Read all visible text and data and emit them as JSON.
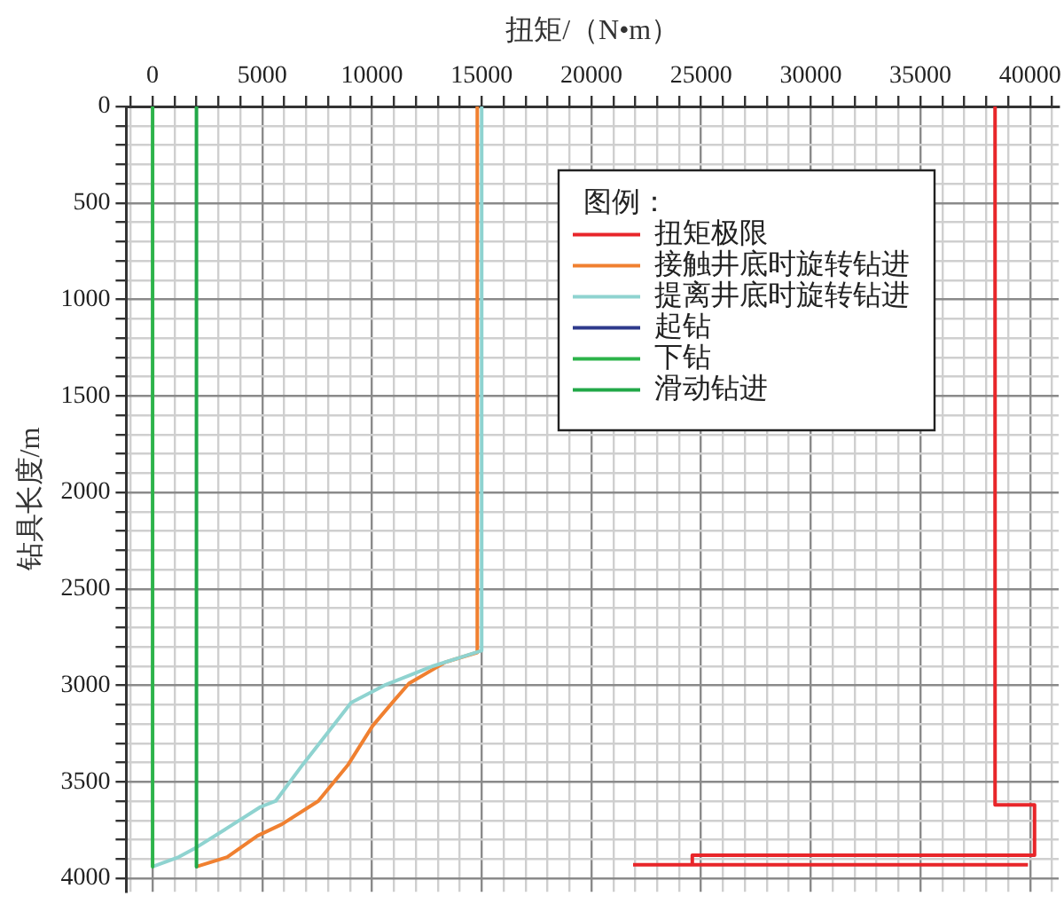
{
  "chart_data": {
    "type": "line",
    "xlabel": "扭矩/（N•m）",
    "ylabel": "钻具长度/m",
    "legend_title": "图例：",
    "legend": "top right",
    "grid": true,
    "line_style": "solid",
    "xlim": [
      -1200,
      41300
    ],
    "ylim": [
      4070,
      0
    ],
    "xticks": [
      {
        "value": -1000,
        "label": null
      },
      0,
      {
        "value": 1000,
        "label": null
      },
      {
        "value": 2000,
        "label": null
      },
      {
        "value": 3000,
        "label": null
      },
      {
        "value": 4000,
        "label": null
      },
      5000,
      {
        "value": 6000,
        "label": null
      },
      {
        "value": 7000,
        "label": null
      },
      {
        "value": 8000,
        "label": null
      },
      {
        "value": 9000,
        "label": null
      },
      10000,
      {
        "value": 11000,
        "label": null
      },
      {
        "value": 12000,
        "label": null
      },
      {
        "value": 13000,
        "label": null
      },
      {
        "value": 14000,
        "label": null
      },
      15000,
      {
        "value": 16000,
        "label": null
      },
      {
        "value": 17000,
        "label": null
      },
      {
        "value": 18000,
        "label": null
      },
      {
        "value": 19000,
        "label": null
      },
      20000,
      {
        "value": 21000,
        "label": null
      },
      {
        "value": 22000,
        "label": null
      },
      {
        "value": 23000,
        "label": null
      },
      {
        "value": 24000,
        "label": null
      },
      25000,
      {
        "value": 26000,
        "label": null
      },
      {
        "value": 27000,
        "label": null
      },
      {
        "value": 28000,
        "label": null
      },
      {
        "value": 29000,
        "label": null
      },
      30000,
      {
        "value": 31000,
        "label": null
      },
      {
        "value": 32000,
        "label": null
      },
      {
        "value": 33000,
        "label": null
      },
      {
        "value": 34000,
        "label": null
      },
      35000,
      {
        "value": 36000,
        "label": null
      },
      {
        "value": 37000,
        "label": null
      },
      {
        "value": 38000,
        "label": null
      },
      {
        "value": 39000,
        "label": null
      },
      40000,
      {
        "value": 41000,
        "label": null
      }
    ],
    "yticks": [
      0,
      {
        "value": 100,
        "label": null
      },
      {
        "value": 200,
        "label": null
      },
      {
        "value": 300,
        "label": null
      },
      {
        "value": 400,
        "label": null
      },
      500,
      {
        "value": 600,
        "label": null
      },
      {
        "value": 700,
        "label": null
      },
      {
        "value": 800,
        "label": null
      },
      {
        "value": 900,
        "label": null
      },
      1000,
      {
        "value": 1100,
        "label": null
      },
      {
        "value": 1200,
        "label": null
      },
      {
        "value": 1300,
        "label": null
      },
      {
        "value": 1400,
        "label": null
      },
      1500,
      {
        "value": 1600,
        "label": null
      },
      {
        "value": 1700,
        "label": null
      },
      {
        "value": 1800,
        "label": null
      },
      {
        "value": 1900,
        "label": null
      },
      2000,
      {
        "value": 2100,
        "label": null
      },
      {
        "value": 2200,
        "label": null
      },
      {
        "value": 2300,
        "label": null
      },
      {
        "value": 2400,
        "label": null
      },
      2500,
      {
        "value": 2600,
        "label": null
      },
      {
        "value": 2700,
        "label": null
      },
      {
        "value": 2800,
        "label": null
      },
      {
        "value": 2900,
        "label": null
      },
      3000,
      {
        "value": 3100,
        "label": null
      },
      {
        "value": 3200,
        "label": null
      },
      {
        "value": 3300,
        "label": null
      },
      {
        "value": 3400,
        "label": null
      },
      3500,
      {
        "value": 3600,
        "label": null
      },
      {
        "value": 3700,
        "label": null
      },
      {
        "value": 3800,
        "label": null
      },
      {
        "value": 3900,
        "label": null
      },
      4000
    ],
    "series": [
      {
        "name": "扭矩极限",
        "color": "#e8262a",
        "x": [
          38400,
          38400,
          40200,
          40200,
          24600,
          24600,
          39900,
          30000,
          21900,
          31200
        ],
        "values": [
          0,
          3620,
          3620,
          3880,
          3880,
          3930,
          3930,
          null,
          3930,
          3930
        ]
      },
      {
        "name": "接触井底时旋转钻进",
        "color": "#f08030",
        "x": [
          14800,
          14800,
          13350,
          11690,
          11000,
          10030,
          8920,
          7550,
          5890,
          4780,
          3400,
          2000
        ],
        "values": [
          0,
          2830,
          2880,
          2990,
          3080,
          3210,
          3410,
          3600,
          3720,
          3780,
          3890,
          3940
        ]
      },
      {
        "name": "提离井底时旋转钻进",
        "color": "#8fd3d0",
        "x": [
          15000,
          15000,
          12790,
          10570,
          9050,
          8090,
          6850,
          5610,
          4920,
          3400,
          2000,
          1190,
          0
        ],
        "values": [
          0,
          2820,
          2900,
          3000,
          3090,
          3230,
          3410,
          3600,
          3630,
          3740,
          3840,
          3890,
          3940
        ]
      },
      {
        "name": "起钻",
        "color": "#2e3a8c",
        "x": [
          null,
          null
        ],
        "values": [
          null,
          null
        ]
      },
      {
        "name": "下钻",
        "color": "#2db34a",
        "x": [
          0,
          0
        ],
        "values": [
          0,
          3940
        ]
      },
      {
        "name": "滑动钻进",
        "color": "#22a848",
        "x": [
          2000,
          2000
        ],
        "values": [
          0,
          3940
        ]
      }
    ]
  }
}
